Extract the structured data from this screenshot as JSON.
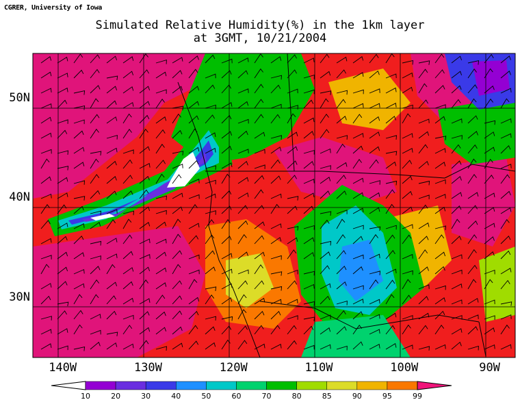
{
  "credit": "CGRER, University of Iowa",
  "title_line1": "Simulated Relative Humidity(%) in the 1km layer",
  "title_line2": "at 3GMT, 10/21/2004",
  "map": {
    "lon_range": [
      -143.5,
      -87
    ],
    "lat_range": [
      24,
      54.5
    ],
    "lat_labels": [
      {
        "lat": 50,
        "text": "50N"
      },
      {
        "lat": 40,
        "text": "40N"
      },
      {
        "lat": 30,
        "text": "30N"
      }
    ],
    "lon_labels": [
      {
        "lon": -140,
        "text": "140W"
      },
      {
        "lon": -130,
        "text": "130W"
      },
      {
        "lon": -120,
        "text": "120W"
      },
      {
        "lon": -110,
        "text": "110W"
      },
      {
        "lon": -100,
        "text": "100W"
      },
      {
        "lon": -90,
        "text": "90W"
      }
    ]
  },
  "colorbar": {
    "labels": [
      "10",
      "20",
      "30",
      "40",
      "50",
      "60",
      "70",
      "80",
      "85",
      "90",
      "95",
      "99"
    ],
    "colors": [
      "#9400d3",
      "#6a2ee0",
      "#3a3ae8",
      "#1e90ff",
      "#00c8c8",
      "#00d26e",
      "#00be00",
      "#a0dc00",
      "#dcdc28",
      "#f0b400",
      "#fa7800",
      "#f01e1e",
      "#f0147a"
    ]
  }
}
